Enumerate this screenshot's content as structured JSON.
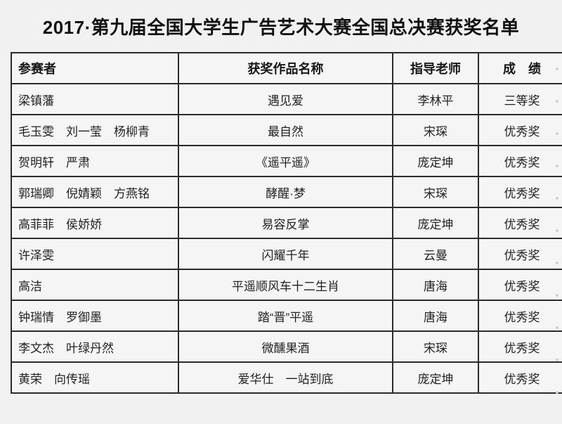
{
  "page": {
    "title": "2017·第九届全国大学生广告艺术大赛全国总决赛获奖名单"
  },
  "colors": {
    "page_background": "#f1f1f1",
    "table_border": "#2b2b2b",
    "text": "#1c1c1c"
  },
  "table": {
    "headers": [
      "参赛者",
      "获奖作品名称",
      "指导老师",
      "成　绩"
    ],
    "rows": [
      [
        "梁镇藩",
        "遇见爱",
        "李林平",
        "三等奖"
      ],
      [
        "毛玉雯　刘一莹　杨柳青",
        "最自然",
        "宋琛",
        "优秀奖"
      ],
      [
        "贺明轩　严肃",
        "《遥平遥》",
        "庞定坤",
        "优秀奖"
      ],
      [
        "郭瑞卿　倪婧颖　方燕铭",
        "酵醒·梦",
        "宋琛",
        "优秀奖"
      ],
      [
        "高菲菲　侯娇娇",
        "易容反掌",
        "庞定坤",
        "优秀奖"
      ],
      [
        "许泽雯",
        "闪耀千年",
        "云曼",
        "优秀奖"
      ],
      [
        "高洁",
        "平遥顺风车十二生肖",
        "唐海",
        "优秀奖"
      ],
      [
        "钟瑞情　罗御墨",
        "踏“晋”平遥",
        "唐海",
        "优秀奖"
      ],
      [
        "李文杰　叶绿丹然",
        "微醺果酒",
        "宋琛",
        "优秀奖"
      ],
      [
        "黄荣　向传瑶",
        "爱华仕　一站到底",
        "庞定坤",
        "优秀奖"
      ]
    ]
  }
}
